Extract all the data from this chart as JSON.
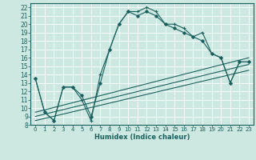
{
  "bg_color": "#cde8e0",
  "grid_color": "#ffffff",
  "line_color": "#1a6060",
  "xlabel": "Humidex (Indice chaleur)",
  "xlim": [
    -0.5,
    23.5
  ],
  "ylim": [
    8,
    22.5
  ],
  "xticks": [
    0,
    1,
    2,
    3,
    4,
    5,
    6,
    7,
    8,
    9,
    10,
    11,
    12,
    13,
    14,
    15,
    16,
    17,
    18,
    19,
    20,
    21,
    22,
    23
  ],
  "yticks": [
    8,
    9,
    10,
    11,
    12,
    13,
    14,
    15,
    16,
    17,
    18,
    19,
    20,
    21,
    22
  ],
  "series1_x": [
    0,
    1,
    2,
    3,
    4,
    5,
    6,
    7,
    8,
    9,
    10,
    11,
    12,
    13,
    14,
    15,
    16,
    17,
    18,
    19,
    20,
    21,
    22,
    23
  ],
  "series1_y": [
    13.5,
    9.5,
    8.5,
    12.5,
    12.5,
    11.0,
    8.5,
    14.0,
    17.0,
    20.0,
    21.5,
    21.5,
    22.0,
    21.5,
    20.0,
    20.0,
    19.5,
    18.5,
    19.0,
    16.5,
    16.0,
    13.0,
    15.5,
    15.5
  ],
  "series2_x": [
    0,
    1,
    2,
    3,
    4,
    5,
    6,
    7,
    8,
    9,
    10,
    11,
    12,
    13,
    14,
    15,
    16,
    17,
    18,
    19,
    20,
    21,
    22,
    23
  ],
  "series2_y": [
    13.5,
    9.5,
    8.5,
    12.5,
    12.5,
    11.5,
    9.0,
    13.0,
    17.0,
    20.0,
    21.5,
    21.0,
    21.5,
    21.0,
    20.0,
    19.5,
    19.0,
    18.5,
    18.0,
    16.5,
    16.0,
    13.0,
    15.5,
    15.5
  ],
  "line1_x": [
    0,
    23
  ],
  "line1_y": [
    9.5,
    16.0
  ],
  "line2_x": [
    0,
    23
  ],
  "line2_y": [
    9.0,
    15.2
  ],
  "line3_x": [
    0,
    23
  ],
  "line3_y": [
    8.5,
    14.5
  ]
}
